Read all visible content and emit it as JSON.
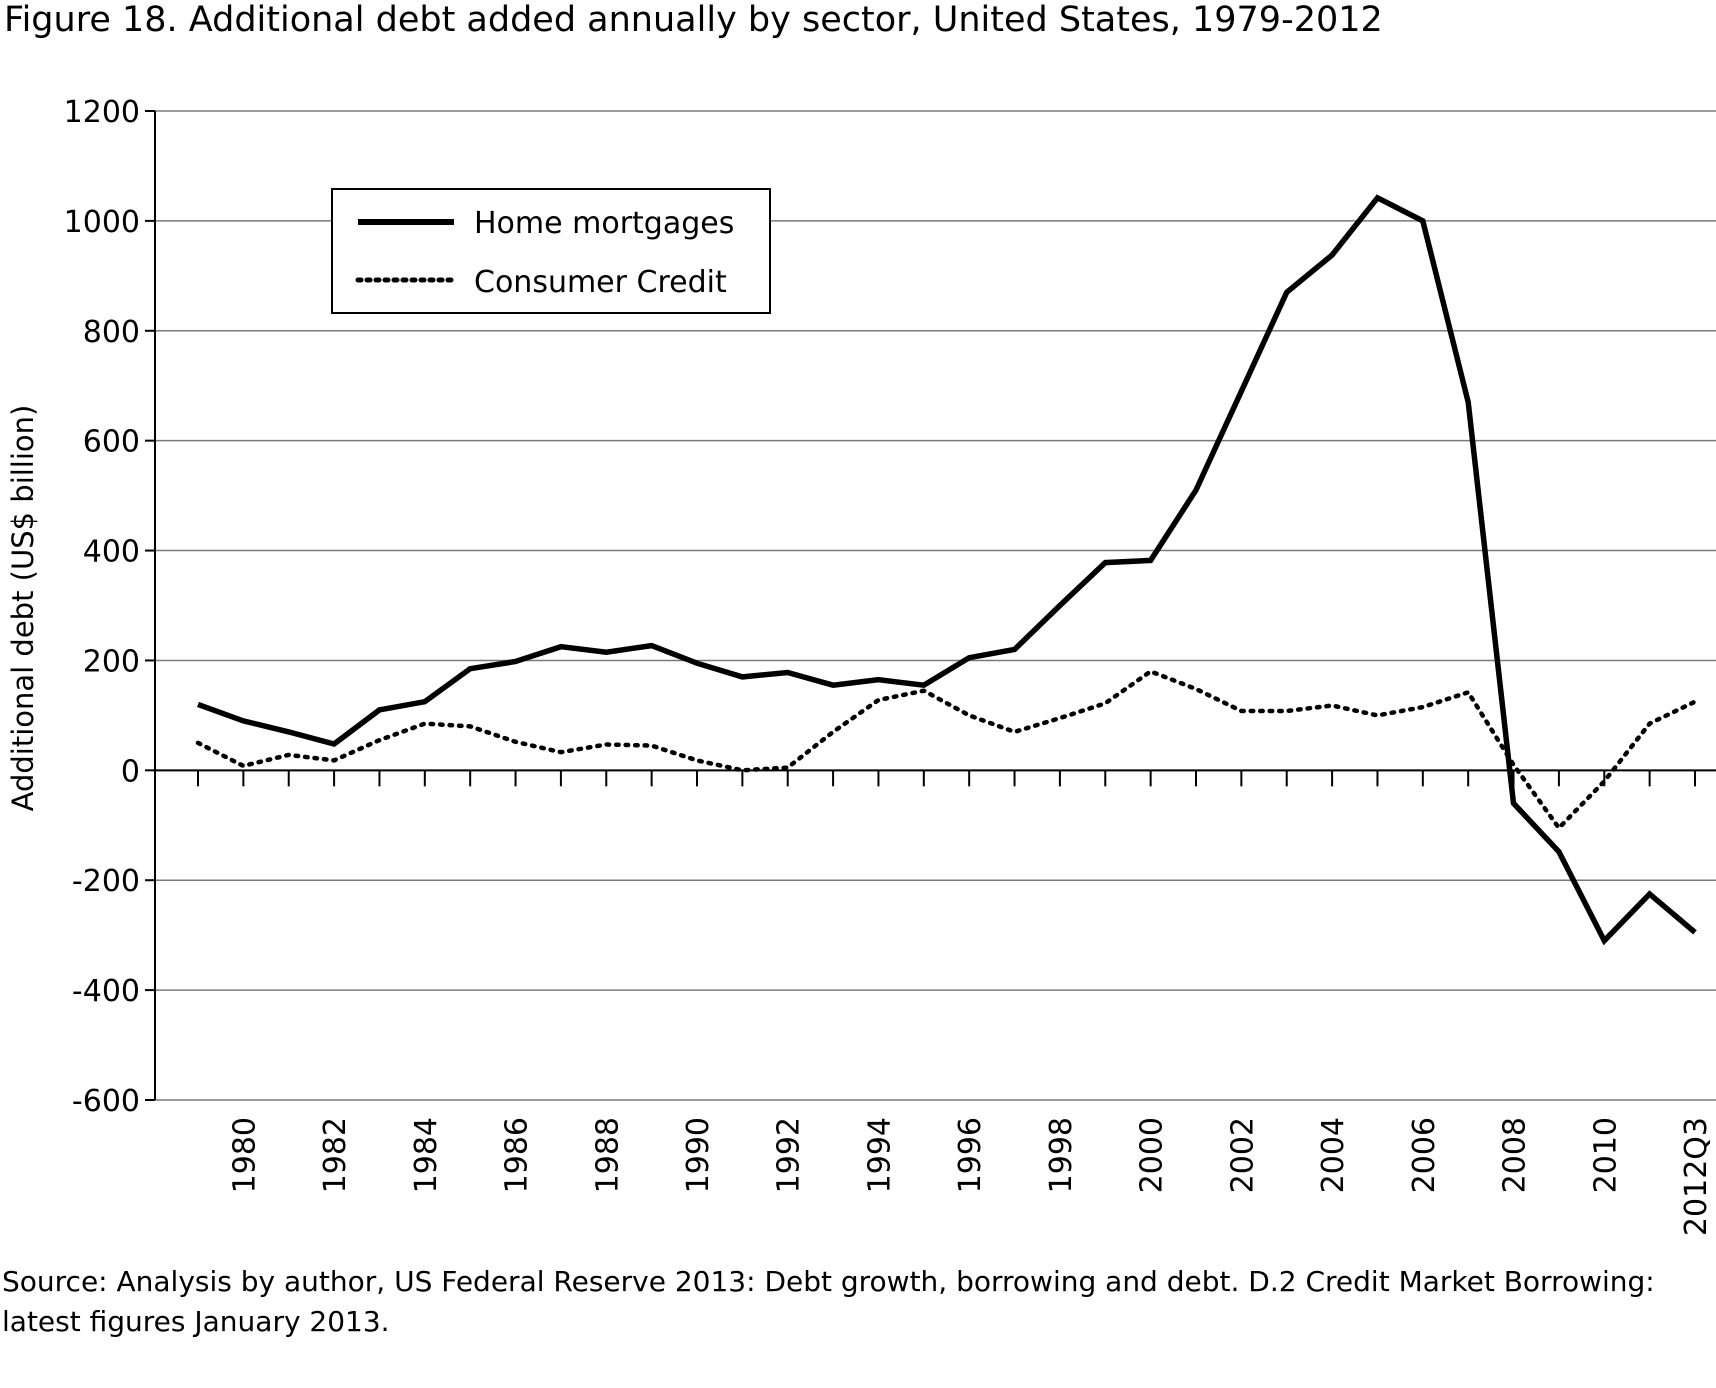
{
  "figure_title": "Figure 18.  Additional debt added annually by sector, United States, 1979-2012",
  "source_note": "Source: Analysis by author, US Federal Reserve 2013: Debt growth, borrowing and debt. D.2 Credit Market Borrowing: latest figures January 2013.",
  "chart_data": {
    "type": "line",
    "title": "Figure 18.  Additional debt added annually by sector, United States, 1979-2012",
    "xlabel": "",
    "ylabel": "Additional debt (US$ billion)",
    "ylim": [
      -600,
      1200
    ],
    "yticks": [
      1200,
      1000,
      800,
      600,
      400,
      200,
      0,
      -200,
      -400,
      -600
    ],
    "grid": "horizontal",
    "legend_position": "top-left",
    "categories": [
      "1979",
      "1980",
      "1981",
      "1982",
      "1983",
      "1984",
      "1985",
      "1986",
      "1987",
      "1988",
      "1989",
      "1990",
      "1991",
      "1992",
      "1993",
      "1994",
      "1995",
      "1996",
      "1997",
      "1998",
      "1999",
      "2000",
      "2001",
      "2002",
      "2003",
      "2004",
      "2005",
      "2006",
      "2007",
      "2008",
      "2009",
      "2010",
      "2011",
      "2012Q3"
    ],
    "tick_labels": [
      "1980",
      "1982",
      "1984",
      "1986",
      "1988",
      "1990",
      "1992",
      "1994",
      "1996",
      "1998",
      "2000",
      "2002",
      "2004",
      "2006",
      "2008",
      "2010",
      "2012Q3"
    ],
    "series": [
      {
        "name": "Home mortgages",
        "style": "solid",
        "values": [
          120,
          90,
          70,
          48,
          110,
          125,
          185,
          198,
          225,
          215,
          227,
          195,
          170,
          178,
          155,
          165,
          155,
          205,
          220,
          300,
          378,
          382,
          510,
          690,
          870,
          938,
          1042,
          1000,
          670,
          -60,
          -148,
          -310,
          -225,
          -295
        ]
      },
      {
        "name": "Consumer Credit",
        "style": "dotted",
        "values": [
          50,
          8,
          28,
          18,
          55,
          85,
          80,
          52,
          33,
          47,
          45,
          18,
          0,
          5,
          70,
          128,
          145,
          100,
          70,
          95,
          122,
          180,
          148,
          108,
          108,
          118,
          100,
          115,
          142,
          10,
          -105,
          -20,
          85,
          125
        ]
      }
    ]
  }
}
